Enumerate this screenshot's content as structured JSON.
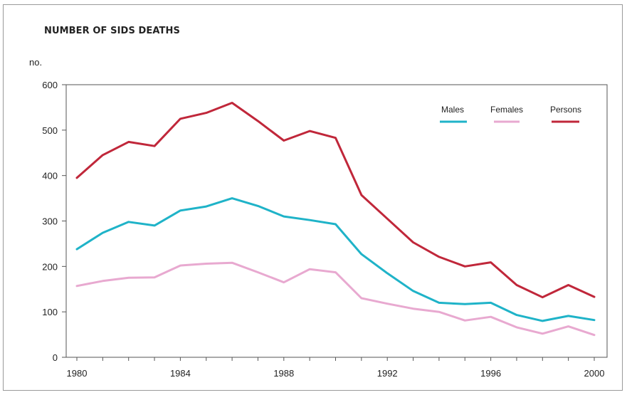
{
  "chart_data": {
    "type": "line",
    "title": "NUMBER OF SIDS DEATHS",
    "ylabel": "no.",
    "xlabel": "",
    "ylim": [
      0,
      600
    ],
    "xlim": [
      1980,
      2000
    ],
    "yticks": [
      0,
      100,
      200,
      300,
      400,
      500,
      600
    ],
    "xticks": [
      1980,
      1984,
      1988,
      1992,
      1996,
      2000
    ],
    "grid": false,
    "legend_position": "top-right",
    "x": [
      1980,
      1981,
      1982,
      1983,
      1984,
      1985,
      1986,
      1987,
      1988,
      1989,
      1990,
      1991,
      1992,
      1993,
      1994,
      1995,
      1996,
      1997,
      1998,
      1999,
      2000
    ],
    "series": [
      {
        "name": "Males",
        "color": "#1fb3c8",
        "values": [
          238,
          274,
          298,
          290,
          323,
          332,
          350,
          333,
          310,
          302,
          293,
          227,
          185,
          146,
          120,
          117,
          120,
          93,
          80,
          91,
          82
        ]
      },
      {
        "name": "Females",
        "color": "#e8a9d0",
        "values": [
          157,
          168,
          175,
          176,
          202,
          206,
          208,
          187,
          165,
          194,
          187,
          130,
          118,
          107,
          100,
          81,
          89,
          66,
          52,
          68,
          49
        ]
      },
      {
        "name": "Persons",
        "color": "#c0273a",
        "values": [
          395,
          445,
          474,
          465,
          525,
          538,
          560,
          520,
          477,
          498,
          483,
          357,
          305,
          253,
          221,
          200,
          209,
          159,
          132,
          159,
          133
        ]
      }
    ]
  }
}
